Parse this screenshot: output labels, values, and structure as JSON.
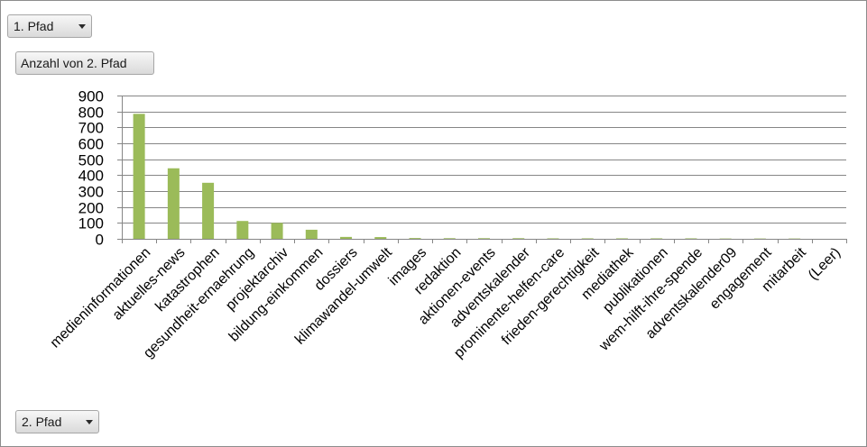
{
  "filter_field": {
    "label": "1. Pfad",
    "icon": "dropdown-arrow-icon"
  },
  "value_field": {
    "label": "Anzahl von 2. Pfad"
  },
  "axis_field": {
    "label": "2. Pfad",
    "icon": "dropdown-arrow-icon"
  },
  "chart_data": {
    "type": "bar",
    "categories": [
      "medieninformationen",
      "aktuelles-news",
      "katastrophen",
      "gesundheit-ernaehrung",
      "projektarchiv",
      "bildung-einkommen",
      "dossiers",
      "klimawandel-umwelt",
      "images",
      "redaktion",
      "aktionen-events",
      "adventskalender",
      "prominente-helfen-care",
      "frieden-gerechtigkeit",
      "mediathek",
      "publikationen",
      "wem-hilft-ihre-spende",
      "adventskalender09",
      "engagement",
      "mitarbeit",
      "(Leer)"
    ],
    "values": [
      785,
      443,
      352,
      112,
      100,
      57,
      12,
      11,
      5,
      4,
      4,
      4,
      3,
      3,
      3,
      3,
      3,
      2,
      2,
      2,
      0
    ],
    "yticks": [
      "0",
      "100",
      "200",
      "300",
      "400",
      "500",
      "600",
      "700",
      "800",
      "900"
    ],
    "ylim": [
      0,
      900
    ],
    "grid": true,
    "bar_color": "#9bbb59",
    "grid_color": "#868686"
  }
}
